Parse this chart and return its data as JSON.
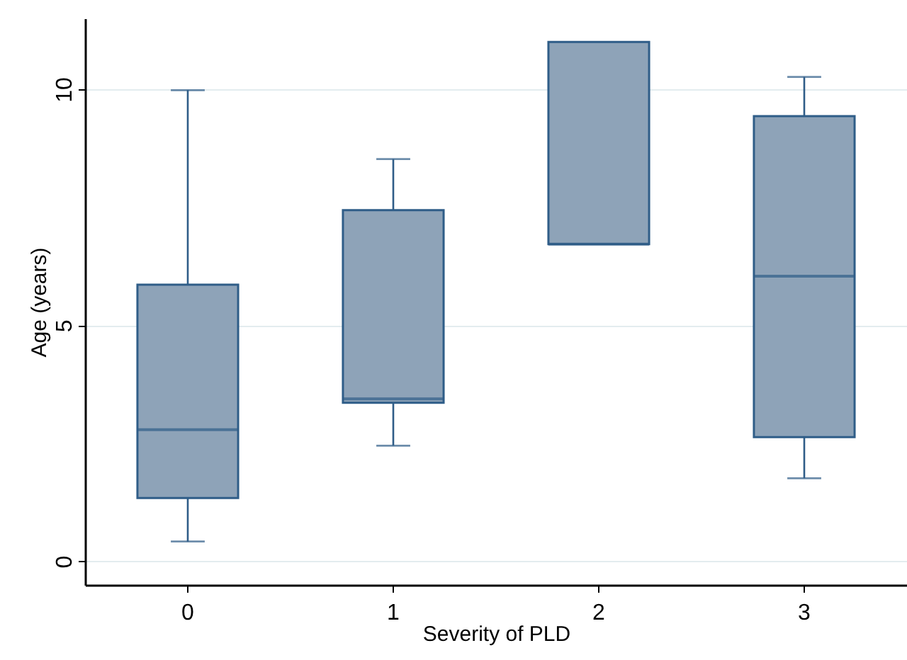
{
  "chart_data": {
    "type": "box",
    "xlabel": "Severity of PLD",
    "ylabel": "Age (years)",
    "categories": [
      "0",
      "1",
      "2",
      "3"
    ],
    "boxes": [
      {
        "low": 0.42,
        "q1": 1.34,
        "median": 2.79,
        "q3": 5.86,
        "high": 9.98
      },
      {
        "low": 2.45,
        "q1": 3.36,
        "median": 3.44,
        "q3": 7.44,
        "high": 8.52
      },
      {
        "low": 6.72,
        "q1": 6.72,
        "median": 6.72,
        "q3": 11.0,
        "high": 11.0
      },
      {
        "low": 1.76,
        "q1": 2.63,
        "median": 6.04,
        "q3": 9.43,
        "high": 10.26
      }
    ],
    "color": "#8ea3b8",
    "ylim": [
      -0.5,
      11.5
    ],
    "yticks": [
      0,
      5,
      10
    ],
    "grid": "y"
  }
}
